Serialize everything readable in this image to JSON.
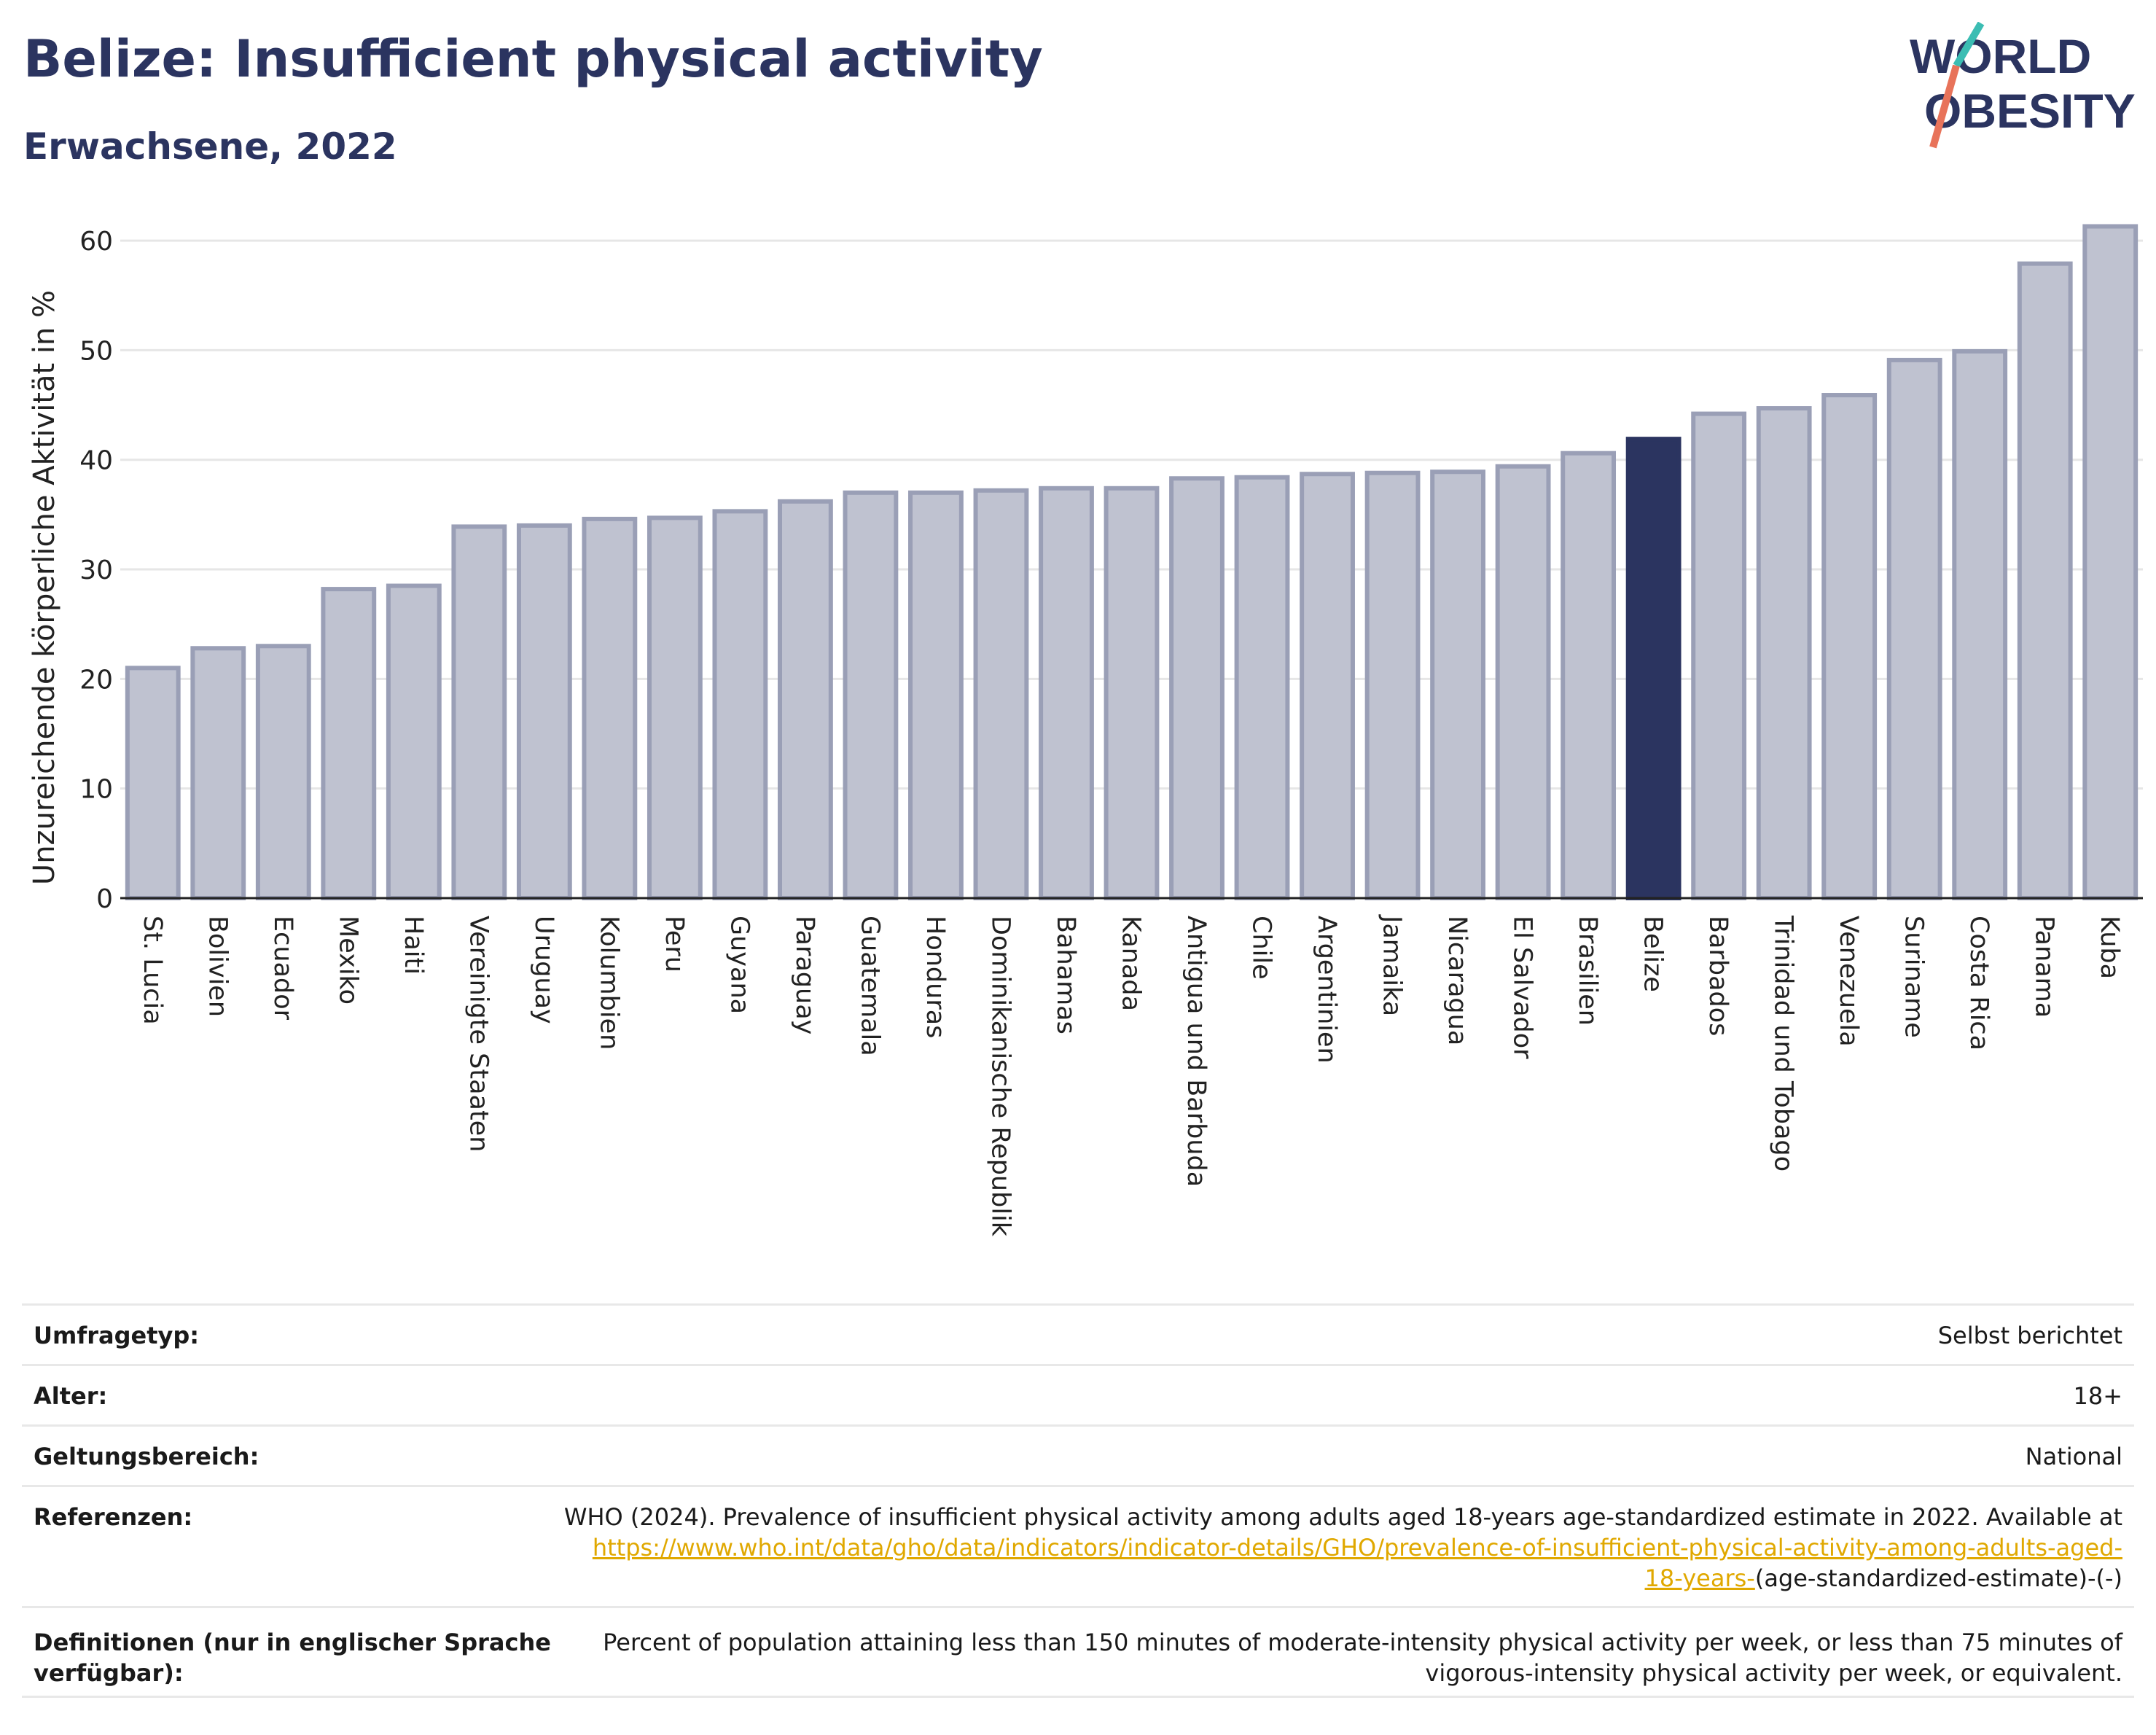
{
  "header": {
    "title": "Belize: Insufficient physical activity",
    "subtitle": "Erwachsene, 2022"
  },
  "logo": {
    "line1": "WORLD",
    "line2": "OBESITY"
  },
  "colors": {
    "bar": "#bfc2d0",
    "bar_stroke": "#9a9fb6",
    "highlight": "#2b3460",
    "title": "#2b3460",
    "link": "#e0a800"
  },
  "chart_data": {
    "type": "bar",
    "ylabel": "Unzureichende körperliche Aktivität in %",
    "ylim": [
      0,
      62
    ],
    "yticks": [
      0,
      10,
      20,
      30,
      40,
      50,
      60
    ],
    "grid": true,
    "highlight": "Belize",
    "categories": [
      "St. Lucia",
      "Bolivien",
      "Ecuador",
      "Mexiko",
      "Haiti",
      "Vereinigte Staaten",
      "Uruguay",
      "Kolumbien",
      "Peru",
      "Guyana",
      "Paraguay",
      "Guatemala",
      "Honduras",
      "Dominikanische Republik",
      "Bahamas",
      "Kanada",
      "Antigua und Barbuda",
      "Chile",
      "Argentinien",
      "Jamaika",
      "Nicaragua",
      "El Salvador",
      "Brasilien",
      "Belize",
      "Barbados",
      "Trinidad und Tobago",
      "Venezuela",
      "Suriname",
      "Costa Rica",
      "Panama",
      "Kuba"
    ],
    "values": [
      21.0,
      22.8,
      23.0,
      28.2,
      28.5,
      33.9,
      34.0,
      34.6,
      34.7,
      35.3,
      36.2,
      37.0,
      37.0,
      37.2,
      37.4,
      37.4,
      38.3,
      38.4,
      38.7,
      38.8,
      38.9,
      39.4,
      40.6,
      41.9,
      44.2,
      44.7,
      45.9,
      49.1,
      49.9,
      57.9,
      61.3
    ]
  },
  "meta": {
    "survey_label": "Umfragetyp:",
    "survey_value": "Selbst berichtet",
    "age_label": "Alter:",
    "age_value": "18+",
    "scope_label": "Geltungsbereich:",
    "scope_value": "National",
    "ref_label": "Referenzen:",
    "ref_text": "WHO (2024). Prevalence of insufficient physical activity among adults aged 18-years age-standardized estimate in 2022. Available at",
    "ref_link_a": "https://www.who.int/data/gho/data/indicators/indicator-details/GHO/prevalence-of-insufficient-physical-activity-among-adults-aged-",
    "ref_link_b": "18-years-",
    "ref_tail": "(age-standardized-estimate)-(-)",
    "def_label_1": "Definitionen (nur in englischer Sprache",
    "def_label_2": "verfügbar):",
    "def_text_1": "Percent of population attaining less than 150 minutes of moderate-intensity physical activity per week, or less than 75 minutes of",
    "def_text_2": "vigorous-intensity physical activity per week, or equivalent."
  }
}
